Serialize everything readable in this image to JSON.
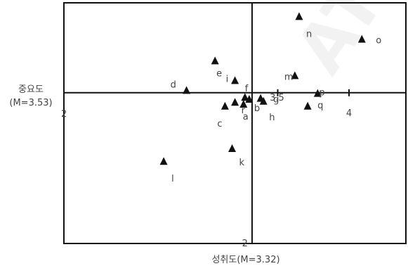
{
  "chart_data": {
    "type": "scatter",
    "title": "",
    "xlabel": "성취도(M=3.32)",
    "ylabel_line1": "중요도",
    "ylabel_line2": "(M=3.53)",
    "xlim": [
      2,
      4.5
    ],
    "ylim": [
      2,
      5.0
    ],
    "x_mean": 3.32,
    "y_mean": 3.53,
    "x_ticks": [
      {
        "value": 2,
        "label": "2"
      },
      {
        "value": 3.5,
        "label": "3.5"
      },
      {
        "value": 4,
        "label": "4"
      }
    ],
    "y_ticks": [
      {
        "value": 2,
        "label": "2"
      }
    ],
    "marker": "triangle",
    "marker_color": "#111111",
    "points": [
      {
        "label": "a",
        "x": 3.26,
        "y": 3.4
      },
      {
        "label": "b",
        "x": 3.3,
        "y": 3.45
      },
      {
        "label": "c",
        "x": 3.13,
        "y": 3.38
      },
      {
        "label": "d",
        "x": 2.86,
        "y": 3.54
      },
      {
        "label": "e",
        "x": 3.06,
        "y": 3.84
      },
      {
        "label": "f",
        "x": 3.27,
        "y": 3.47
      },
      {
        "label": "g",
        "x": 3.38,
        "y": 3.46
      },
      {
        "label": "h",
        "x": 3.4,
        "y": 3.43
      },
      {
        "label": "i",
        "x": 3.2,
        "y": 3.64
      },
      {
        "label": "k",
        "x": 3.18,
        "y": 2.95
      },
      {
        "label": "l",
        "x": 2.7,
        "y": 2.82
      },
      {
        "label": "m",
        "x": 3.62,
        "y": 3.69
      },
      {
        "label": "n",
        "x": 3.65,
        "y": 4.29
      },
      {
        "label": "o",
        "x": 4.09,
        "y": 4.06
      },
      {
        "label": "p",
        "x": 3.78,
        "y": 3.51
      },
      {
        "label": "q",
        "x": 3.71,
        "y": 3.38
      },
      {
        "label": "r",
        "x": 3.2,
        "y": 3.42
      }
    ]
  },
  "watermark": "ATION"
}
